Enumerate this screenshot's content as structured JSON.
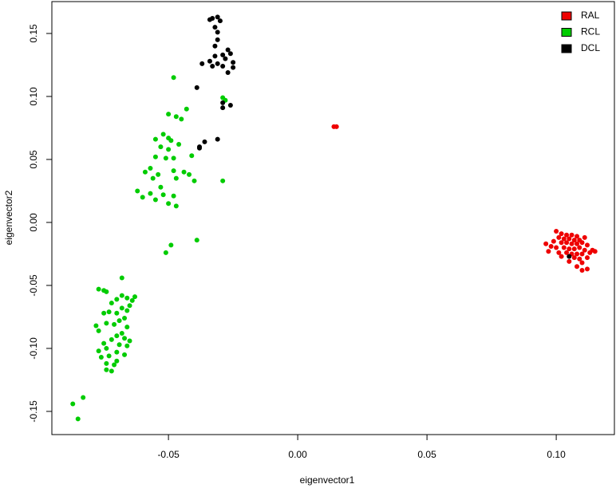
{
  "chart_data": {
    "type": "scatter",
    "xlabel": "eigenvector1",
    "ylabel": "eigenvector2",
    "xlim": [
      -0.0951,
      0.1225
    ],
    "ylim": [
      -0.1684,
      0.1753
    ],
    "xticks": [
      -0.05,
      {
        "value": 0,
        "label": "0.00"
      },
      0.05,
      {
        "value": 0.1,
        "label": "0.10"
      }
    ],
    "yticks": [
      -0.15,
      {
        "value": -0.1,
        "label": "-0.10"
      },
      -0.05,
      {
        "value": 0,
        "label": "0.00"
      },
      0.05,
      {
        "value": 0.1,
        "label": "0.10"
      },
      0.15
    ],
    "legend": "top-right",
    "series": [
      {
        "name": "RAL",
        "color": "#ee0000",
        "x": [
          0.014,
          0.015,
          0.1,
          0.102,
          0.104,
          0.106,
          0.108,
          0.101,
          0.103,
          0.105,
          0.107,
          0.109,
          0.111,
          0.099,
          0.102,
          0.104,
          0.106,
          0.108,
          0.11,
          0.112,
          0.096,
          0.098,
          0.1,
          0.103,
          0.105,
          0.107,
          0.109,
          0.111,
          0.114,
          0.097,
          0.101,
          0.104,
          0.106,
          0.108,
          0.11,
          0.113,
          0.115,
          0.102,
          0.107,
          0.109,
          0.112,
          0.105,
          0.11,
          0.108,
          0.112,
          0.11
        ],
        "values": [
          0.076,
          0.076,
          -0.007,
          -0.009,
          -0.01,
          -0.01,
          -0.011,
          -0.012,
          -0.013,
          -0.013,
          -0.014,
          -0.014,
          -0.012,
          -0.015,
          -0.016,
          -0.016,
          -0.017,
          -0.017,
          -0.016,
          -0.018,
          -0.017,
          -0.019,
          -0.02,
          -0.02,
          -0.021,
          -0.021,
          -0.02,
          -0.022,
          -0.022,
          -0.023,
          -0.024,
          -0.024,
          -0.025,
          -0.025,
          -0.025,
          -0.024,
          -0.023,
          -0.027,
          -0.028,
          -0.029,
          -0.028,
          -0.031,
          -0.032,
          -0.035,
          -0.037,
          -0.038
        ]
      },
      {
        "name": "RCL",
        "color": "#00cc00",
        "x": [
          -0.087,
          -0.083,
          -0.085,
          -0.068,
          -0.077,
          -0.075,
          -0.074,
          -0.068,
          -0.066,
          -0.063,
          -0.064,
          -0.065,
          -0.07,
          -0.072,
          -0.068,
          -0.066,
          -0.07,
          -0.073,
          -0.075,
          -0.067,
          -0.069,
          -0.071,
          -0.074,
          -0.078,
          -0.077,
          -0.066,
          -0.068,
          -0.07,
          -0.067,
          -0.065,
          -0.072,
          -0.075,
          -0.069,
          -0.066,
          -0.074,
          -0.077,
          -0.07,
          -0.067,
          -0.073,
          -0.076,
          -0.07,
          -0.074,
          -0.071,
          -0.074,
          -0.072,
          -0.048,
          -0.043,
          -0.05,
          -0.047,
          -0.045,
          -0.052,
          -0.05,
          -0.055,
          -0.049,
          -0.053,
          -0.05,
          -0.046,
          -0.055,
          -0.051,
          -0.048,
          -0.041,
          -0.057,
          -0.059,
          -0.054,
          -0.048,
          -0.044,
          -0.042,
          -0.056,
          -0.047,
          -0.04,
          -0.053,
          -0.062,
          -0.057,
          -0.052,
          -0.048,
          -0.06,
          -0.055,
          -0.05,
          -0.047,
          -0.049,
          -0.051,
          -0.039,
          -0.029,
          -0.029,
          -0.028
        ],
        "values": [
          -0.144,
          -0.139,
          -0.156,
          -0.044,
          -0.053,
          -0.054,
          -0.055,
          -0.058,
          -0.06,
          -0.059,
          -0.062,
          -0.066,
          -0.061,
          -0.064,
          -0.068,
          -0.07,
          -0.072,
          -0.071,
          -0.072,
          -0.076,
          -0.078,
          -0.081,
          -0.08,
          -0.082,
          -0.086,
          -0.083,
          -0.088,
          -0.09,
          -0.092,
          -0.094,
          -0.093,
          -0.096,
          -0.097,
          -0.098,
          -0.1,
          -0.102,
          -0.103,
          -0.105,
          -0.106,
          -0.107,
          -0.11,
          -0.112,
          -0.113,
          -0.117,
          -0.118,
          0.115,
          0.09,
          0.086,
          0.084,
          0.082,
          0.07,
          0.067,
          0.066,
          0.065,
          0.06,
          0.058,
          0.062,
          0.052,
          0.051,
          0.051,
          0.053,
          0.043,
          0.04,
          0.038,
          0.041,
          0.04,
          0.038,
          0.035,
          0.035,
          0.033,
          0.028,
          0.025,
          0.023,
          0.022,
          0.021,
          0.02,
          0.018,
          0.015,
          0.013,
          -0.018,
          -0.024,
          -0.014,
          0.033,
          0.099,
          0.097
        ]
      },
      {
        "name": "DCL",
        "color": "#000000",
        "x": [
          -0.031,
          -0.034,
          -0.033,
          -0.03,
          -0.032,
          -0.031,
          -0.031,
          -0.032,
          -0.027,
          -0.026,
          -0.029,
          -0.032,
          -0.034,
          -0.028,
          -0.025,
          -0.037,
          -0.031,
          -0.029,
          -0.033,
          -0.025,
          -0.027,
          -0.039,
          -0.029,
          -0.026,
          -0.029,
          -0.031,
          -0.036,
          -0.038,
          -0.038,
          0.105
        ],
        "values": [
          0.163,
          0.161,
          0.162,
          0.16,
          0.155,
          0.151,
          0.145,
          0.14,
          0.137,
          0.134,
          0.133,
          0.132,
          0.128,
          0.13,
          0.127,
          0.126,
          0.126,
          0.124,
          0.124,
          0.123,
          0.119,
          0.107,
          0.095,
          0.093,
          0.091,
          0.066,
          0.064,
          0.06,
          0.059,
          -0.027
        ]
      }
    ]
  }
}
